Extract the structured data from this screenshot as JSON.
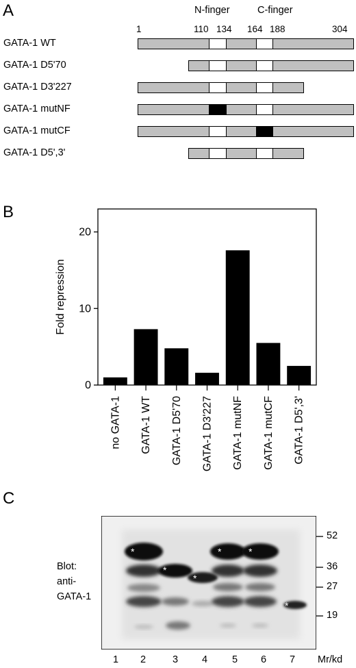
{
  "panel_a": {
    "letter": "A",
    "domain_labels": {
      "n_finger": "N-finger",
      "c_finger": "C-finger"
    },
    "positions": [
      "1",
      "110",
      "134",
      "164",
      "188",
      "304"
    ],
    "constructs": [
      {
        "label": "GATA-1 WT",
        "start": 1,
        "end": 304,
        "nf_filled": false,
        "cf_filled": false
      },
      {
        "label": "GATA-1 D5'70",
        "start": 70,
        "end": 304,
        "nf_filled": false,
        "cf_filled": false
      },
      {
        "label": "GATA-1 D3'227",
        "start": 1,
        "end": 227,
        "nf_filled": false,
        "cf_filled": false
      },
      {
        "label": "GATA-1 mutNF",
        "start": 1,
        "end": 304,
        "nf_filled": true,
        "cf_filled": false
      },
      {
        "label": "GATA-1 mutCF",
        "start": 1,
        "end": 304,
        "nf_filled": false,
        "cf_filled": true
      },
      {
        "label": "GATA-1 D5',3'",
        "start": 70,
        "end": 227,
        "nf_filled": false,
        "cf_filled": false
      }
    ],
    "colors": {
      "bar": "#c0c0c0",
      "finger_open": "#ffffff",
      "finger_mutant": "#000000"
    }
  },
  "panel_b": {
    "letter": "B"
  },
  "chart_data": {
    "type": "bar",
    "ylabel": "Fold repression",
    "ylim": [
      0,
      23
    ],
    "yticks": [
      0,
      10,
      20
    ],
    "categories": [
      "no GATA-1",
      "GATA-1 WT",
      "GATA-1 D5'70",
      "GATA-1 D3'227",
      "GATA-1 mutNF",
      "GATA-1 mutCF",
      "GATA-1 D5',3'"
    ],
    "values": [
      1.0,
      7.3,
      4.8,
      1.6,
      17.6,
      5.5,
      2.5
    ],
    "bar_color": "#000000"
  },
  "panel_c": {
    "letter": "C",
    "blot_label_lines": [
      "Blot:",
      "anti-",
      "GATA-1"
    ],
    "markers": [
      "52",
      "36",
      "27",
      "19"
    ],
    "lanes": [
      "1",
      "2",
      "3",
      "4",
      "5",
      "6",
      "7"
    ],
    "unit_label": "Mr/kd",
    "star_glyph": "*"
  }
}
